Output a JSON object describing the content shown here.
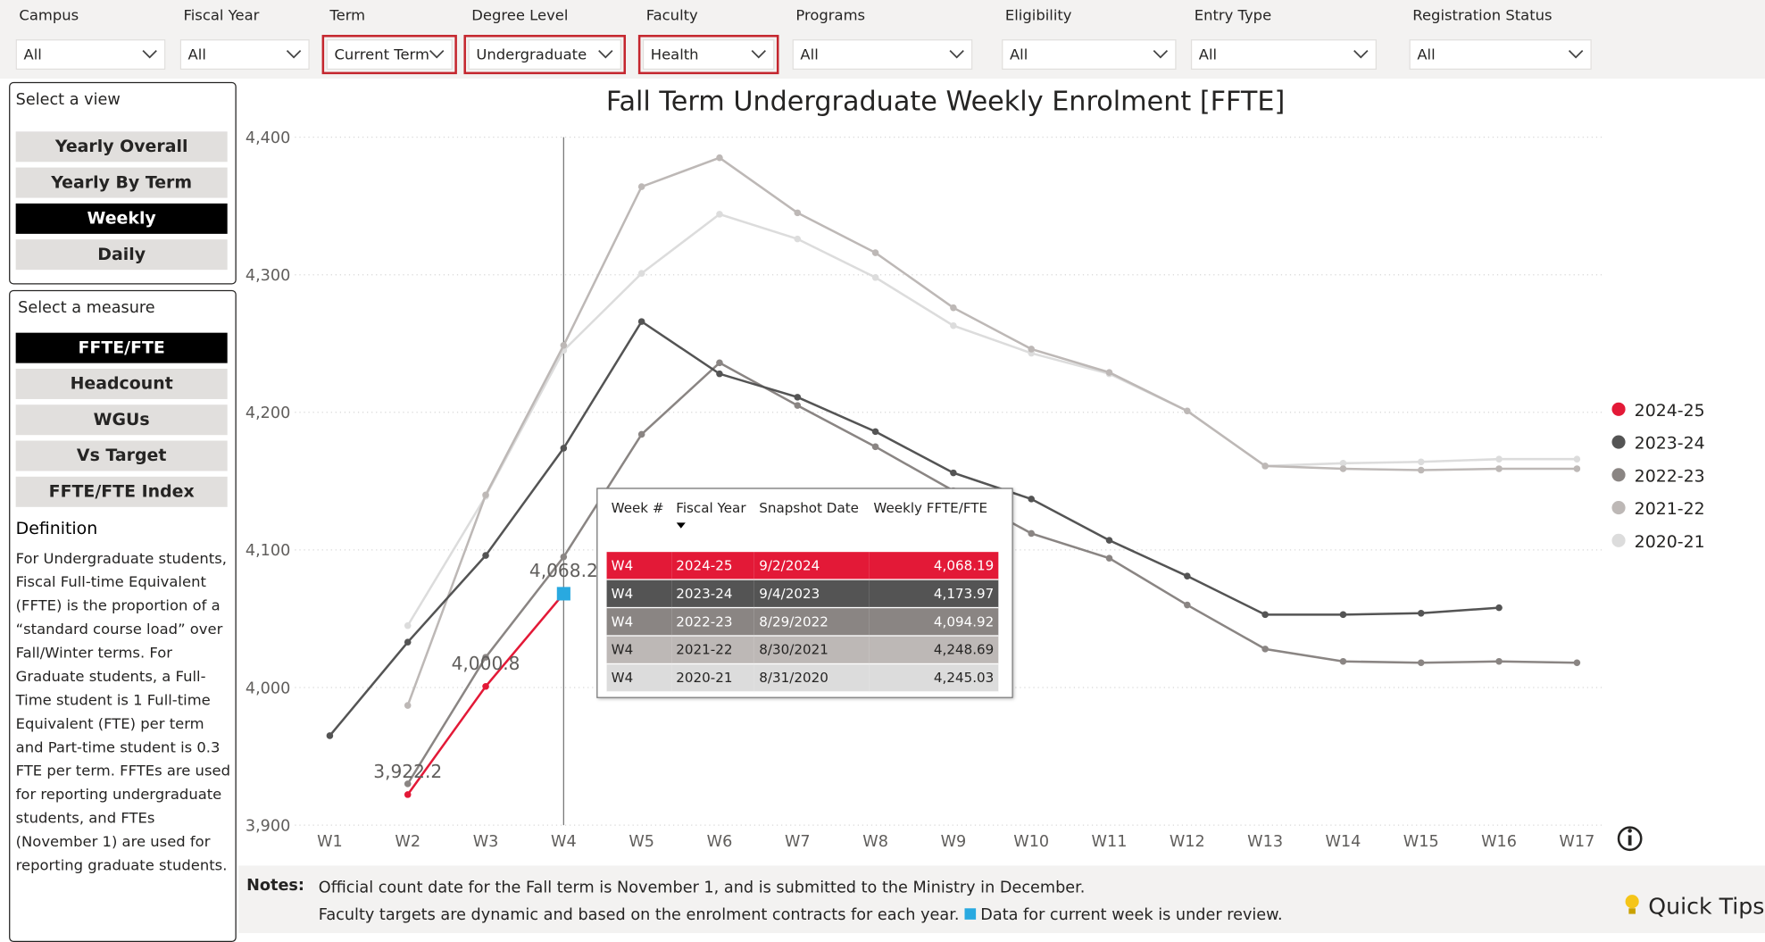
{
  "filters": [
    {
      "label": "Campus",
      "value": "All",
      "highlighted": false
    },
    {
      "label": "Fiscal Year",
      "value": "All",
      "highlighted": false
    },
    {
      "label": "Term",
      "value": "Current Term",
      "highlighted": true
    },
    {
      "label": "Degree Level",
      "value": "Undergraduate",
      "highlighted": true
    },
    {
      "label": "Faculty",
      "value": "Health",
      "highlighted": true
    },
    {
      "label": "Programs",
      "value": "All",
      "highlighted": false
    },
    {
      "label": "Eligibility",
      "value": "All",
      "highlighted": false
    },
    {
      "label": "Entry Type",
      "value": "All",
      "highlighted": false
    },
    {
      "label": "Registration Status",
      "value": "All",
      "highlighted": false
    }
  ],
  "view_panel": {
    "title": "Select a view",
    "options": [
      "Yearly Overall",
      "Yearly By Term",
      "Weekly",
      "Daily"
    ],
    "selected": 2
  },
  "measure_panel": {
    "title": "Select a measure",
    "options": [
      "FFTE/FTE",
      "Headcount",
      "WGUs",
      "Vs Target",
      "FFTE/FTE Index"
    ],
    "selected": 0
  },
  "definition": {
    "title": "Definition",
    "text": "For Undergraduate students, Fiscal Full-time Equivalent (FFTE) is the proportion of a “standard course load” over Fall/Winter terms. For Graduate students, a Full-Time student is 1 Full-time Equivalent (FTE) per term and Part-time student is 0.3 FTE per term. FFTEs are used for reporting undergraduate students, and FTEs (November 1) are used for reporting graduate students."
  },
  "notes": {
    "title": "Notes:",
    "lines": [
      "Official count date for the Fall term is November 1, and is submitted to the Ministry in December.",
      "Faculty targets are dynamic and based on the enrolment contracts for each year."
    ],
    "marker_text": "Data for current week is under review.",
    "marker_color": "#29a9e0"
  },
  "quick_tips": "Quick Tips",
  "tooltip": {
    "headers": [
      "Week #",
      "Fiscal Year",
      "Snapshot Date",
      "Weekly FFTE/FTE"
    ],
    "rows": [
      [
        "W4",
        "2024-25",
        "9/2/2024",
        "4,068.19"
      ],
      [
        "W4",
        "2023-24",
        "9/4/2023",
        "4,173.97"
      ],
      [
        "W4",
        "2022-23",
        "8/29/2022",
        "4,094.92"
      ],
      [
        "W4",
        "2021-22",
        "8/30/2021",
        "4,248.69"
      ],
      [
        "W4",
        "2020-21",
        "8/31/2020",
        "4,245.03"
      ]
    ]
  },
  "chart_data": {
    "type": "line",
    "title": "Fall Term Undergraduate Weekly Enrolment [FFTE]",
    "categories": [
      "W1",
      "W2",
      "W3",
      "W4",
      "W5",
      "W6",
      "W7",
      "W8",
      "W9",
      "W10",
      "W11",
      "W12",
      "W13",
      "W14",
      "W15",
      "W16",
      "W17"
    ],
    "ylim": [
      3900,
      4400
    ],
    "yticks": [
      {
        "value": 3900,
        "label": "3,900"
      },
      {
        "value": 4000,
        "label": "4,000"
      },
      {
        "value": 4100,
        "label": "4,100"
      },
      {
        "value": 4200,
        "label": "4,200"
      },
      {
        "value": 4300,
        "label": "4,300"
      },
      {
        "value": 4400,
        "label": "4,400"
      }
    ],
    "grid": true,
    "legend": "right",
    "hover_category": 3,
    "current_marker_color": "#29a9e0",
    "series": [
      {
        "name": "2024-25",
        "color": "#e31937",
        "values": [
          null,
          3922.2,
          4000.8,
          4068.19,
          null,
          null,
          null,
          null,
          null,
          null,
          null,
          null,
          null,
          null,
          null,
          null,
          null
        ],
        "value_labels": [
          null,
          "3,922.2",
          "4,000.8",
          "4,068.2",
          null,
          null,
          null,
          null,
          null,
          null,
          null,
          null,
          null,
          null,
          null,
          null,
          null
        ]
      },
      {
        "name": "2023-24",
        "color": "#545454",
        "values": [
          3965,
          4033,
          4096,
          4173.97,
          4266,
          4228,
          4211,
          4186,
          4156,
          4137,
          4107,
          4081,
          4053,
          4053,
          4054,
          4058,
          null
        ]
      },
      {
        "name": "2022-23",
        "color": "#8a8583",
        "values": [
          null,
          3930,
          4022,
          4094.92,
          4184,
          4236,
          4205,
          4175,
          4143,
          4112,
          4094,
          4060,
          4028,
          4019,
          4018,
          4019,
          4018
        ]
      },
      {
        "name": "2021-22",
        "color": "#bdb8b6",
        "values": [
          null,
          3987,
          4140,
          4248.69,
          4364,
          4385,
          4345,
          4316,
          4276,
          4246,
          4229,
          4201,
          4161,
          4159,
          4158,
          4159,
          4159
        ]
      },
      {
        "name": "2020-21",
        "color": "#dcdcdc",
        "values": [
          null,
          4045,
          4139,
          4245.03,
          4301,
          4344,
          4326,
          4298,
          4263,
          4243,
          4228,
          4201,
          4161,
          4163,
          4164,
          4166,
          4166
        ]
      }
    ]
  }
}
